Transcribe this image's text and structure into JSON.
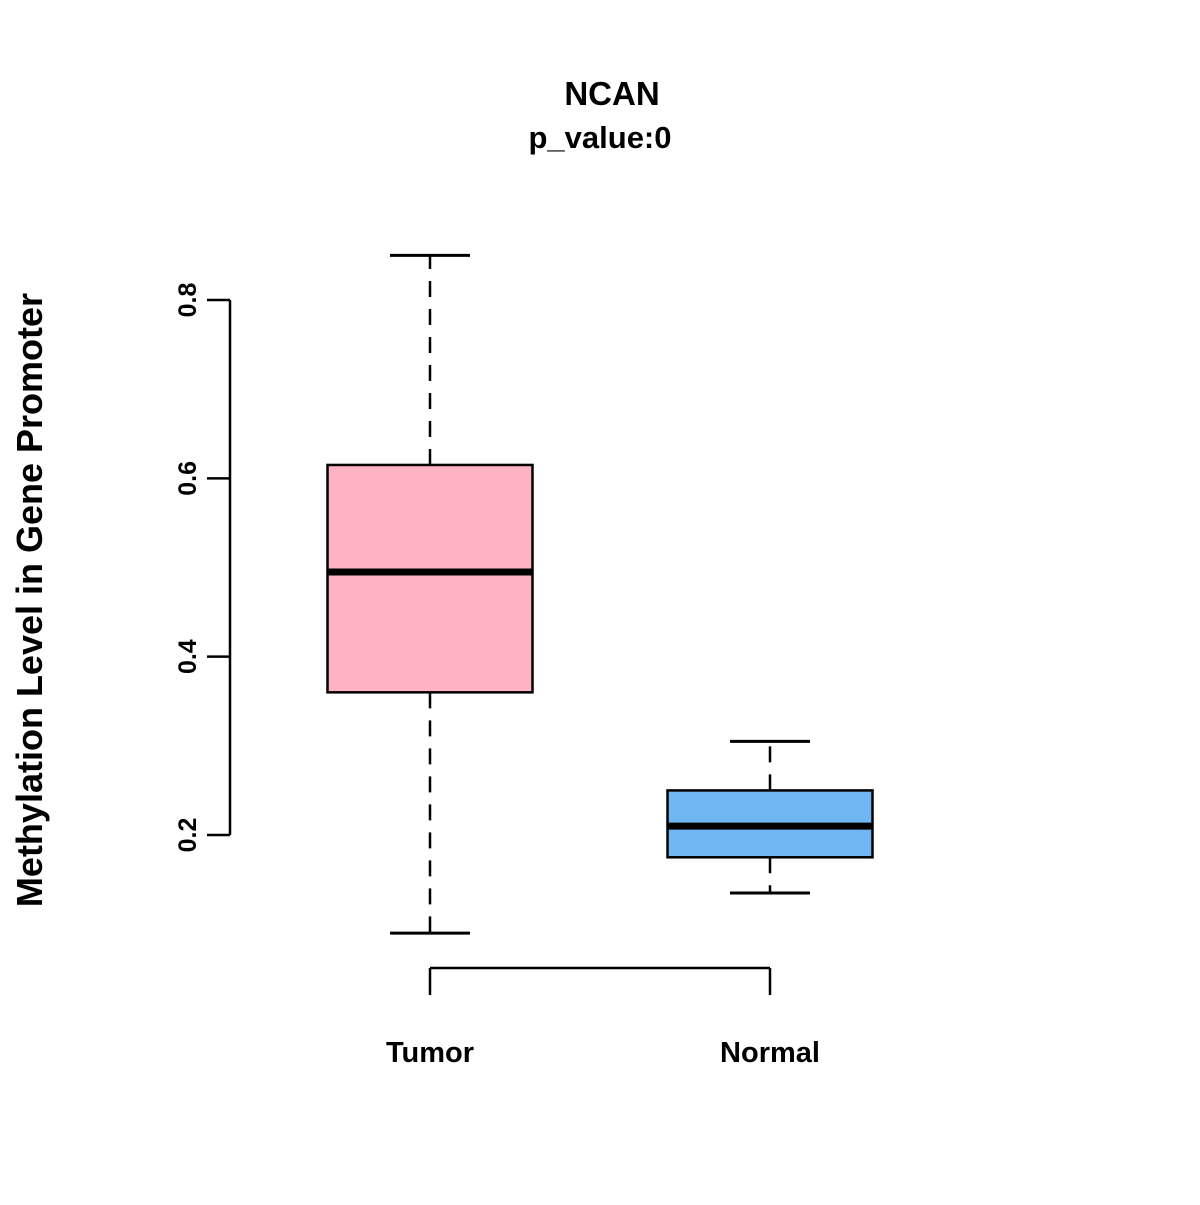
{
  "chart_data": {
    "type": "boxplot",
    "title": "NCAN",
    "subtitle": "p_value:0",
    "ylabel": "Methylation Level in Gene Promoter",
    "xlabel": "",
    "categories": [
      "Tumor",
      "Normal"
    ],
    "y_ticks": [
      0.2,
      0.4,
      0.6,
      0.8
    ],
    "ylim": [
      0.05,
      0.9
    ],
    "grid": false,
    "legend": "none",
    "series": [
      {
        "name": "Tumor",
        "color": "#FFB3C2",
        "min": 0.09,
        "q1": 0.36,
        "median": 0.495,
        "q3": 0.615,
        "max": 0.85
      },
      {
        "name": "Normal",
        "color": "#6FB7F2",
        "min": 0.135,
        "q1": 0.175,
        "median": 0.21,
        "q3": 0.25,
        "max": 0.305
      }
    ],
    "colors": {
      "box_border": "#000000",
      "median_line": "#000000",
      "axis": "#000000",
      "background": "#ffffff"
    }
  }
}
